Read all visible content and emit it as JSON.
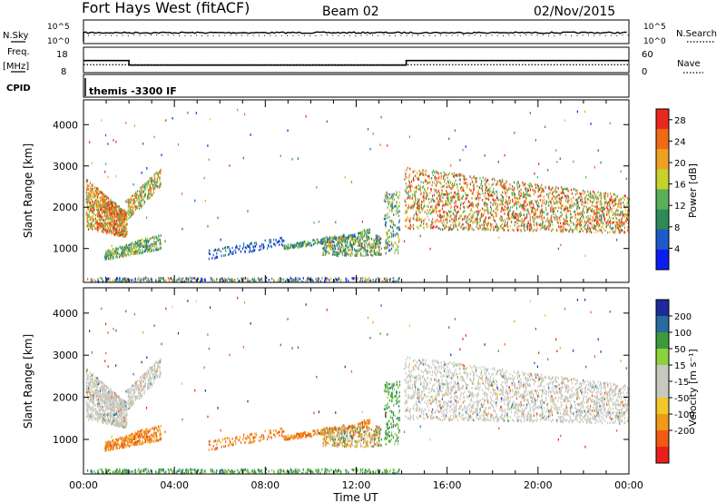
{
  "header": {
    "radar": "Fort Hays West (fitACF)",
    "beam": "Beam 02",
    "date": "02/Nov/2015"
  },
  "noise_panel": {
    "left_label": "N.Sky",
    "left_ticks": [
      "10^5",
      "10^0"
    ],
    "right_ticks": [
      "10^5",
      "10^0"
    ],
    "right_label": "N.Search"
  },
  "freq_panel": {
    "left_label_line1": "Freq.",
    "left_label_line2": "[MHz]",
    "left_ticks": [
      "18",
      "8"
    ],
    "right_ticks": [
      "60",
      "0"
    ],
    "right_label": "Nave",
    "solid_mhz": [
      [
        0,
        13.5
      ],
      [
        2.0,
        10.5
      ],
      [
        14.2,
        13.5
      ],
      [
        24,
        13.5
      ]
    ],
    "dotted_mhz": 10.8
  },
  "cpid_panel": {
    "label": "CPID",
    "program": "themis -3300 IF"
  },
  "chart_data": [
    {
      "type": "heatmap",
      "name": "power",
      "ylabel": "Slant Range [km]",
      "ylim": [
        180,
        4600
      ],
      "yticks": [
        "1000",
        "2000",
        "3000",
        "4000"
      ],
      "ytick_values": [
        1000,
        2000,
        3000,
        4000
      ],
      "xlim": [
        0,
        24
      ],
      "colorbar": {
        "label": "Power [dB]",
        "ticks": [
          "28",
          "24",
          "20",
          "16",
          "12",
          "8",
          "4"
        ],
        "tick_values": [
          28,
          24,
          20,
          16,
          12,
          8,
          4
        ],
        "range": [
          0,
          30
        ],
        "colors": [
          "#0a1ef0",
          "#1e5ac8",
          "#2e8a58",
          "#5ab05a",
          "#c8d22c",
          "#f0a020",
          "#f06a14",
          "#e8281e"
        ]
      }
    },
    {
      "type": "heatmap",
      "name": "velocity",
      "ylabel": "Slant Range [km]",
      "ylim": [
        180,
        4600
      ],
      "yticks": [
        "1000",
        "2000",
        "3000",
        "4000"
      ],
      "ytick_values": [
        1000,
        2000,
        3000,
        4000
      ],
      "xlim": [
        0,
        24
      ],
      "colorbar": {
        "label": "Velocity [m s⁻¹]",
        "ticks": [
          "200",
          "100",
          "50",
          "15",
          "-15",
          "-50",
          "-100",
          "-200"
        ],
        "tick_values": [
          200,
          100,
          50,
          15,
          -15,
          -50,
          -100,
          -200
        ],
        "range": [
          -250,
          250
        ],
        "colors": [
          "#e8201a",
          "#f05a14",
          "#f09a18",
          "#f0c828",
          "#c8c8c0",
          "#c8c8c0",
          "#8cd23c",
          "#3c9a3c",
          "#2a6aa0",
          "#1e2a9a"
        ]
      }
    }
  ],
  "x_axis": {
    "label": "Time UT",
    "ticks": [
      "00:00",
      "04:00",
      "08:00",
      "12:00",
      "16:00",
      "20:00",
      "00:00"
    ],
    "tick_hours": [
      0,
      4,
      8,
      12,
      16,
      20,
      24
    ]
  }
}
